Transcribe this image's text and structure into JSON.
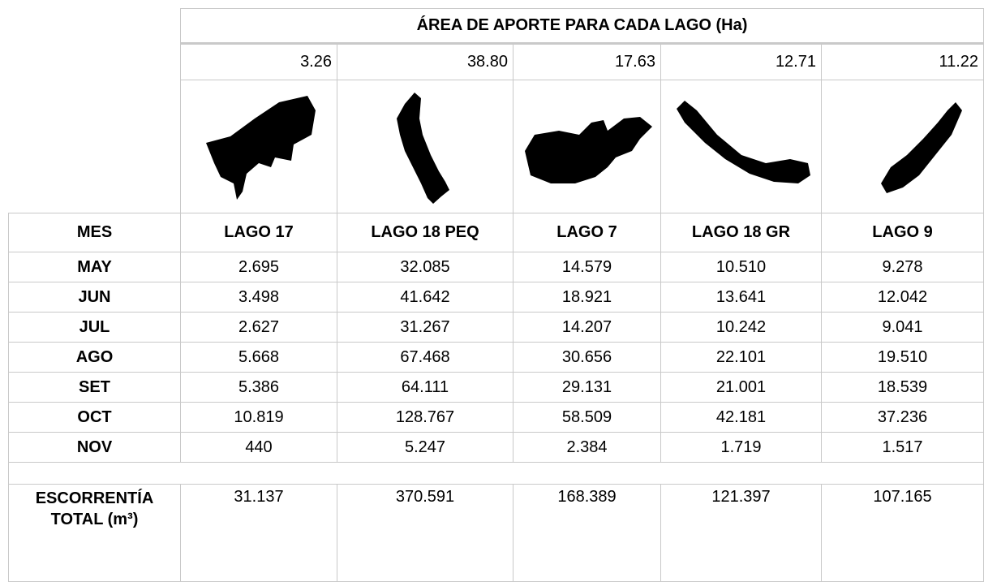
{
  "header": {
    "title": "ÁREA DE APORTE PARA CADA LAGO (Ha)",
    "areas": [
      "3.26",
      "38.80",
      "17.63",
      "12.71",
      "11.22"
    ]
  },
  "table": {
    "columns": [
      "MES",
      "LAGO 17",
      "LAGO 18 PEQ",
      "LAGO 7",
      "LAGO 18 GR",
      "LAGO 9"
    ],
    "rows": [
      [
        "MAY",
        "2.695",
        "32.085",
        "14.579",
        "10.510",
        "9.278"
      ],
      [
        "JUN",
        "3.498",
        "41.642",
        "18.921",
        "13.641",
        "12.042"
      ],
      [
        "JUL",
        "2.627",
        "31.267",
        "14.207",
        "10.242",
        "9.041"
      ],
      [
        "AGO",
        "5.668",
        "67.468",
        "30.656",
        "22.101",
        "19.510"
      ],
      [
        "SET",
        "5.386",
        "64.111",
        "29.131",
        "21.001",
        "18.539"
      ],
      [
        "OCT",
        "10.819",
        "128.767",
        "58.509",
        "42.181",
        "37.236"
      ],
      [
        "NOV",
        "440",
        "5.247",
        "2.384",
        "1.719",
        "1.517"
      ]
    ],
    "total": [
      "ESCORRENTÍA TOTAL (m³)",
      "31.137",
      "370.591",
      "168.389",
      "121.397",
      "107.165"
    ]
  }
}
